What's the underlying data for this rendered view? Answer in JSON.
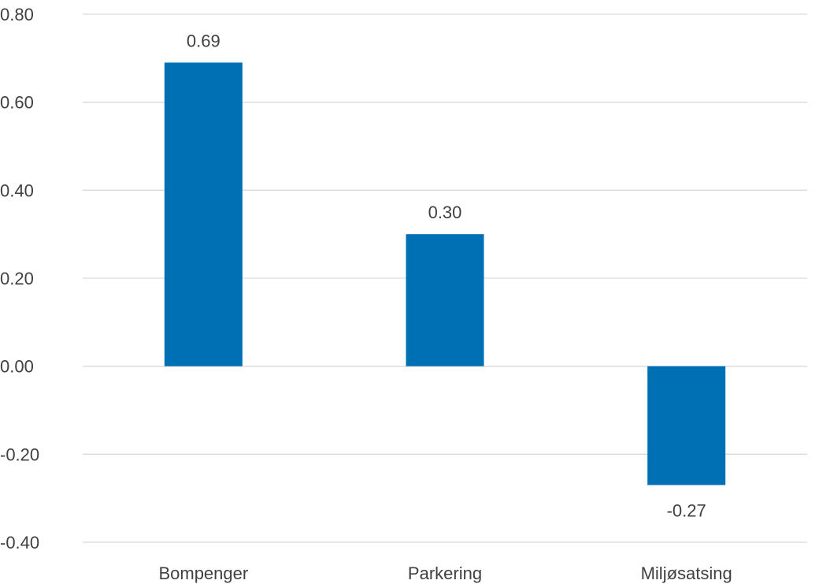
{
  "chart_data": {
    "type": "bar",
    "categories": [
      "Bompenger",
      "Parkering",
      "Miljøsatsing"
    ],
    "values": [
      0.69,
      0.3,
      -0.27
    ],
    "data_labels": [
      "0.69",
      "0.30",
      "-0.27"
    ],
    "ylim": [
      -0.4,
      0.8
    ],
    "yticks": [
      0.8,
      0.6,
      0.4,
      0.2,
      0.0,
      -0.2,
      -0.4
    ],
    "ytick_labels": [
      "0.80",
      "0.60",
      "0.40",
      "0.20",
      "0.00",
      "-0.20",
      "-0.40"
    ],
    "grid": true,
    "legend": false,
    "bar_color": "#0070b5"
  }
}
